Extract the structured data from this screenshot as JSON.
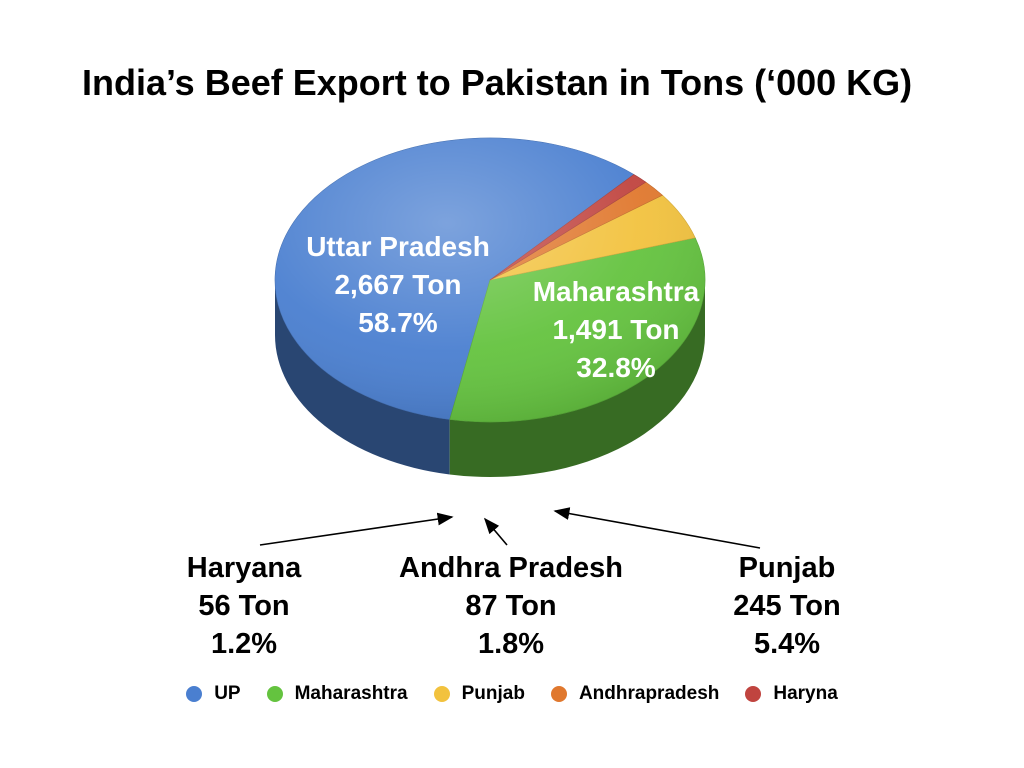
{
  "chart_data": {
    "type": "pie",
    "title": "India’s Beef Export to Pakistan in Tons (‘000 KG)",
    "slices": [
      {
        "legend": "UP",
        "label": "Uttar Pradesh",
        "value": 2667,
        "value_label": "2,667 Ton",
        "percent": 58.7,
        "percent_label": "58.7%",
        "color": "#4a7fd0"
      },
      {
        "legend": "Maharashtra",
        "label": "Maharashtra",
        "value": 1491,
        "value_label": "1,491 Ton",
        "percent": 32.8,
        "percent_label": "32.8%",
        "color": "#64c33f"
      },
      {
        "legend": "Punjab",
        "label": "Punjab",
        "value": 245,
        "value_label": "245 Ton",
        "percent": 5.4,
        "percent_label": "5.4%",
        "color": "#f2c23e"
      },
      {
        "legend": "Andhrapradesh",
        "label": "Andhra Pradesh",
        "value": 87,
        "value_label": "87 Ton",
        "percent": 1.8,
        "percent_label": "1.8%",
        "color": "#e0782e"
      },
      {
        "legend": "Haryna",
        "label": "Haryana",
        "value": 56,
        "value_label": "56 Ton",
        "percent": 1.2,
        "percent_label": "1.2%",
        "color": "#c0443f"
      }
    ],
    "legend_position": "bottom"
  }
}
